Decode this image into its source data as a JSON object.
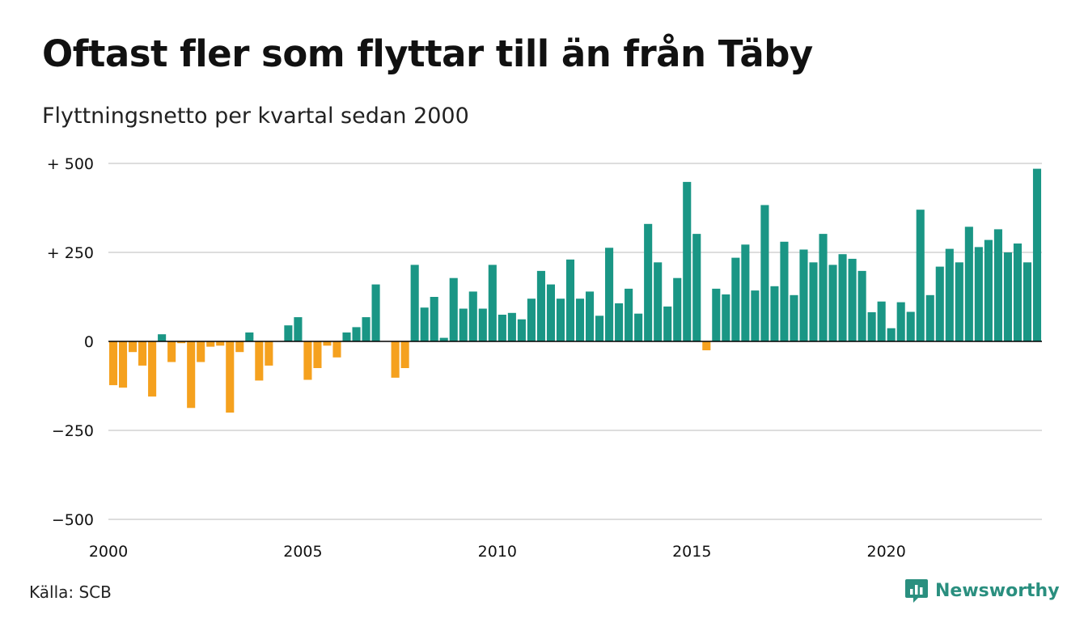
{
  "title": "Oftast fler som flyttar till än från Täby",
  "subtitle": "Flyttningsnetto per kvartal sedan 2000",
  "source": "Källa: SCB",
  "brand": "Newsworthy",
  "colors": {
    "positive": "#1a9685",
    "negative": "#f5a11e",
    "grid": "#dddddd",
    "axis": "#000000",
    "brand": "#2a8f7f"
  },
  "chart_data": {
    "type": "bar",
    "title": "Oftast fler som flyttar till än från Täby",
    "subtitle": "Flyttningsnetto per kvartal sedan 2000",
    "xlabel": "",
    "ylabel": "",
    "ylim": [
      -500,
      500
    ],
    "y_ticks": [
      {
        "value": 500,
        "label": "+ 500"
      },
      {
        "value": 250,
        "label": "+ 250"
      },
      {
        "value": 0,
        "label": "0"
      },
      {
        "value": -250,
        "label": "−250"
      },
      {
        "value": -500,
        "label": "−500"
      }
    ],
    "x_ticks": [
      "2000",
      "2005",
      "2010",
      "2015",
      "2020"
    ],
    "grid": true,
    "values": [
      -123,
      -130,
      -30,
      -68,
      -155,
      20,
      -58,
      -5,
      -187,
      -58,
      -15,
      -12,
      -200,
      -30,
      25,
      -110,
      -68,
      0,
      45,
      68,
      -108,
      -75,
      -12,
      -45,
      25,
      40,
      68,
      160,
      0,
      -102,
      -75,
      215,
      95,
      125,
      10,
      178,
      92,
      140,
      92,
      215,
      75,
      80,
      62,
      120,
      198,
      160,
      120,
      230,
      120,
      140,
      72,
      263,
      107,
      148,
      78,
      330,
      222,
      98,
      178,
      448,
      302,
      -25,
      148,
      132,
      235,
      272,
      143,
      383,
      155,
      280,
      130,
      258,
      222,
      302,
      215,
      245,
      232,
      198,
      82,
      112,
      37,
      110,
      83,
      370,
      130,
      210,
      260,
      222,
      322,
      265,
      285,
      315,
      250,
      275,
      222,
      485
    ],
    "categories": [
      "2000 K1",
      "2000 K2",
      "2000 K3",
      "2000 K4",
      "2001 K1",
      "2001 K2",
      "2001 K3",
      "2001 K4",
      "2002 K1",
      "2002 K2",
      "2002 K3",
      "2002 K4",
      "2003 K1",
      "2003 K2",
      "2003 K3",
      "2003 K4",
      "2004 K1",
      "2004 K2",
      "2004 K3",
      "2004 K4",
      "2005 K1",
      "2005 K2",
      "2005 K3",
      "2005 K4",
      "2006 K1",
      "2006 K2",
      "2006 K3",
      "2006 K4",
      "2007 K1",
      "2007 K2",
      "2007 K3",
      "2007 K4",
      "2008 K1",
      "2008 K2",
      "2008 K3",
      "2008 K4",
      "2009 K1",
      "2009 K2",
      "2009 K3",
      "2009 K4",
      "2010 K1",
      "2010 K2",
      "2010 K3",
      "2010 K4",
      "2011 K1",
      "2011 K2",
      "2011 K3",
      "2011 K4",
      "2012 K1",
      "2012 K2",
      "2012 K3",
      "2012 K4",
      "2013 K1",
      "2013 K2",
      "2013 K3",
      "2013 K4",
      "2014 K1",
      "2014 K2",
      "2014 K3",
      "2014 K4",
      "2015 K1",
      "2015 K2",
      "2015 K3",
      "2015 K4",
      "2016 K1",
      "2016 K2",
      "2016 K3",
      "2016 K4",
      "2017 K1",
      "2017 K2",
      "2017 K3",
      "2017 K4",
      "2018 K1",
      "2018 K2",
      "2018 K3",
      "2018 K4",
      "2019 K1",
      "2019 K2",
      "2019 K3",
      "2019 K4",
      "2020 K1",
      "2020 K2",
      "2020 K3",
      "2020 K4",
      "2021 K1",
      "2021 K2",
      "2021 K3",
      "2021 K4",
      "2022 K1",
      "2022 K2",
      "2022 K3",
      "2022 K4",
      "2023 K1",
      "2023 K2",
      "2023 K3",
      "2023 K4"
    ]
  }
}
